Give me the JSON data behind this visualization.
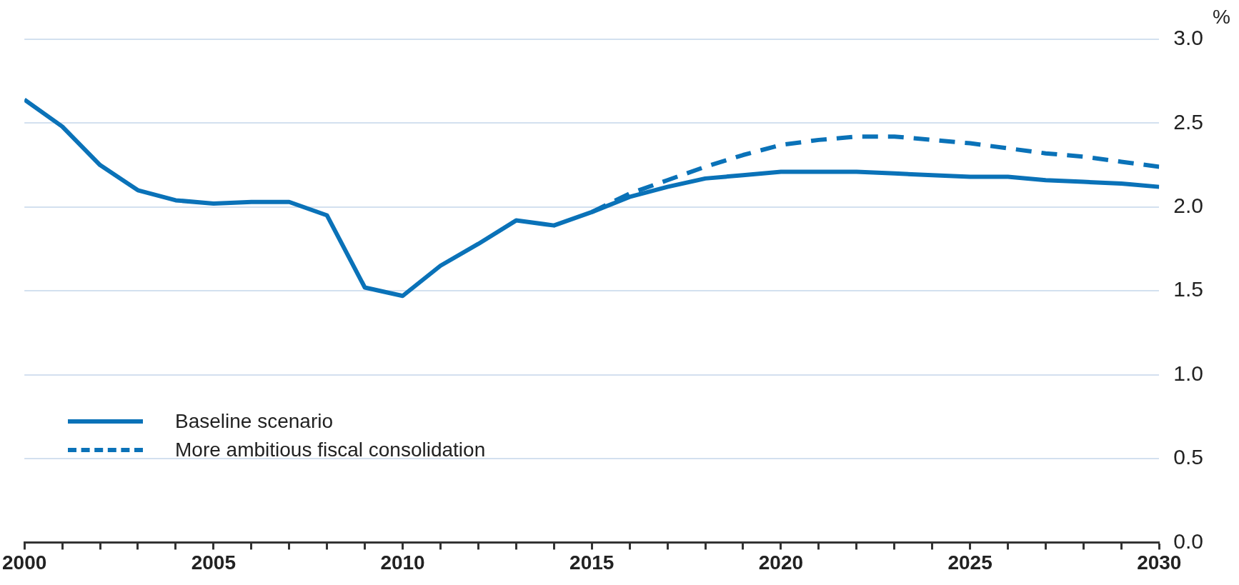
{
  "chart_data": {
    "type": "line",
    "ylabel": "%",
    "legend": "bottom left",
    "grid": "y",
    "marker": "none",
    "xlim": [
      2000,
      2030
    ],
    "xticks": [
      2000,
      {
        "value": 2001,
        "label": null
      },
      {
        "value": 2002,
        "label": null
      },
      {
        "value": 2003,
        "label": null
      },
      {
        "value": 2004,
        "label": null
      },
      2005,
      {
        "value": 2006,
        "label": null
      },
      {
        "value": 2007,
        "label": null
      },
      {
        "value": 2008,
        "label": null
      },
      {
        "value": 2009,
        "label": null
      },
      2010,
      {
        "value": 2011,
        "label": null
      },
      {
        "value": 2012,
        "label": null
      },
      {
        "value": 2013,
        "label": null
      },
      {
        "value": 2014,
        "label": null
      },
      2015,
      {
        "value": 2016,
        "label": null
      },
      {
        "value": 2017,
        "label": null
      },
      {
        "value": 2018,
        "label": null
      },
      {
        "value": 2019,
        "label": null
      },
      2020,
      {
        "value": 2021,
        "label": null
      },
      {
        "value": 2022,
        "label": null
      },
      {
        "value": 2023,
        "label": null
      },
      {
        "value": 2024,
        "label": null
      },
      2025,
      {
        "value": 2026,
        "label": null
      },
      {
        "value": 2027,
        "label": null
      },
      {
        "value": 2028,
        "label": null
      },
      {
        "value": 2029,
        "label": null
      },
      2030
    ],
    "ylim": [
      0,
      3
    ],
    "yticks": [
      {
        "value": 0,
        "label": "0.0"
      },
      {
        "value": 0.5,
        "label": "0.5"
      },
      {
        "value": 1,
        "label": "1.0"
      },
      {
        "value": 1.5,
        "label": "1.5"
      },
      {
        "value": 2,
        "label": "2.0"
      },
      {
        "value": 2.5,
        "label": "2.5"
      },
      {
        "value": 3,
        "label": "3.0"
      }
    ],
    "series": [
      {
        "name": "Baseline scenario",
        "color": "#0a72b8",
        "line_style": "solid",
        "x": [
          2000,
          2001,
          2002,
          2003,
          2004,
          2005,
          2006,
          2007,
          2008,
          2009,
          2010,
          2011,
          2012,
          2013,
          2014,
          2015,
          2016,
          2017,
          2018,
          2019,
          2020,
          2021,
          2022,
          2023,
          2024,
          2025,
          2026,
          2027,
          2028,
          2029,
          2030
        ],
        "values": [
          2.64,
          2.48,
          2.25,
          2.1,
          2.04,
          2.02,
          2.03,
          2.03,
          1.95,
          1.52,
          1.47,
          1.65,
          1.78,
          1.92,
          1.89,
          1.97,
          2.06,
          2.12,
          2.17,
          2.19,
          2.21,
          2.21,
          2.21,
          2.2,
          2.19,
          2.18,
          2.18,
          2.16,
          2.15,
          2.14,
          2.12
        ]
      },
      {
        "name": "More ambitious fiscal consolidation",
        "color": "#0a72b8",
        "line_style": "dashed",
        "x": [
          2015,
          2016,
          2017,
          2018,
          2019,
          2020,
          2021,
          2022,
          2023,
          2024,
          2025,
          2026,
          2027,
          2028,
          2029,
          2030
        ],
        "values": [
          1.97,
          2.08,
          2.16,
          2.24,
          2.31,
          2.37,
          2.4,
          2.42,
          2.42,
          2.4,
          2.38,
          2.35,
          2.32,
          2.3,
          2.27,
          2.24
        ]
      }
    ]
  }
}
